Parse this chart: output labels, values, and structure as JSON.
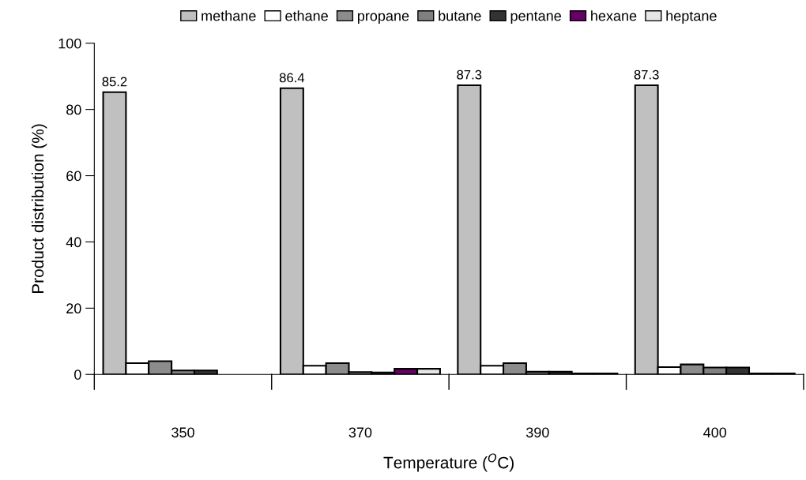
{
  "chart_data": {
    "type": "bar",
    "xlabel": "Temperature ($^{O}$C)",
    "ylabel": "Product distribution (%)",
    "categories": [
      "350",
      "370",
      "390",
      "400"
    ],
    "series": [
      {
        "name": "methane",
        "color": "#c0c0c0",
        "values": [
          85.2,
          86.4,
          87.3,
          87.3
        ],
        "value_labels": [
          "85.2",
          "86.4",
          "87.3",
          "87.3"
        ]
      },
      {
        "name": "ethane",
        "color": "#ffffff",
        "values": [
          3.4,
          2.6,
          2.6,
          2.2
        ]
      },
      {
        "name": "propane",
        "color": "#8c8c8c",
        "values": [
          4.0,
          3.4,
          3.4,
          3.0
        ]
      },
      {
        "name": "butane",
        "color": "#808080",
        "values": [
          1.2,
          0.7,
          0.8,
          2.1
        ]
      },
      {
        "name": "pentane",
        "color": "#333333",
        "values": [
          1.2,
          0.6,
          0.8,
          2.1
        ]
      },
      {
        "name": "hexane",
        "color": "#660066",
        "values": [
          null,
          1.7,
          0.3,
          0.3
        ]
      },
      {
        "name": "heptane",
        "color": "#e6e6e6",
        "values": [
          null,
          1.7,
          0.3,
          0.3
        ]
      }
    ],
    "ylim": [
      0,
      100
    ],
    "yticks": [
      0,
      20,
      40,
      60,
      80,
      100
    ],
    "grid": false,
    "legend": "top"
  }
}
